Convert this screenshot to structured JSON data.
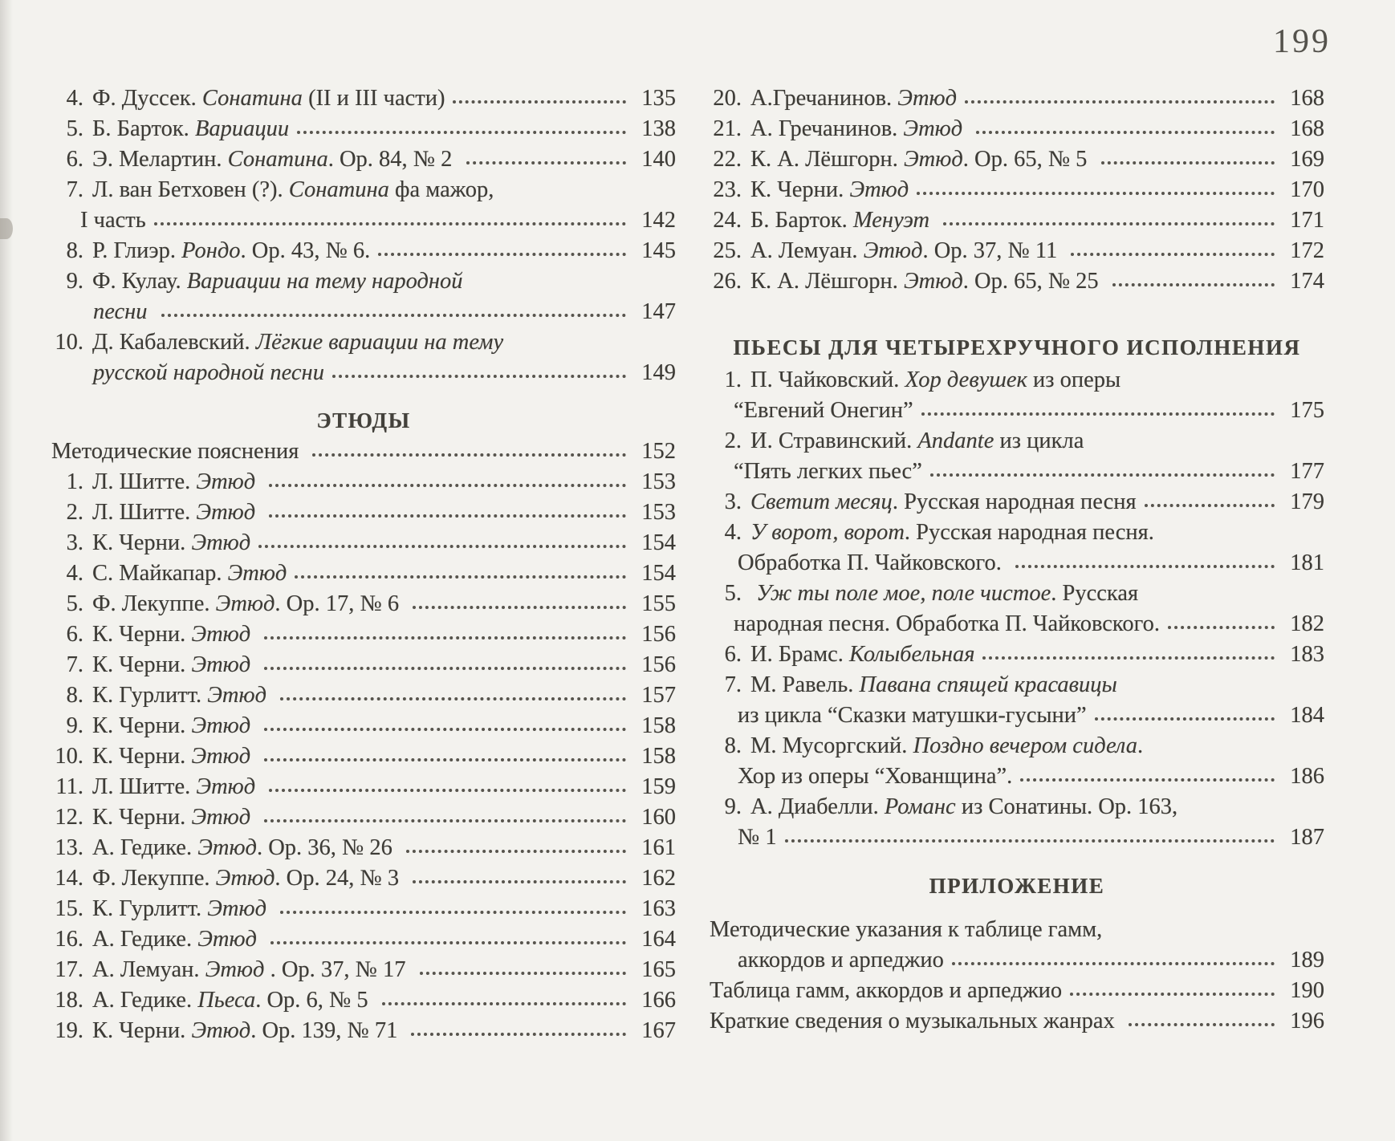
{
  "page_number": "199",
  "left_column": {
    "blocks": [
      {
        "type": "entries",
        "lines": [
          {
            "n": "4.",
            "seg": [
              [
                "Ф. Дуссек. ",
                0
              ],
              [
                "Сонатина",
                1
              ],
              [
                " (II и III части)",
                0
              ]
            ],
            "p": "135"
          },
          {
            "n": "5.",
            "seg": [
              [
                "Б. Барток. ",
                0
              ],
              [
                "Вариации",
                1
              ]
            ],
            "p": "138"
          },
          {
            "n": "6.",
            "seg": [
              [
                "Э. Мелартин. ",
                0
              ],
              [
                "Сонатина",
                1
              ],
              [
                ". Ор. 84, № 2 ",
                0
              ]
            ],
            "p": "140"
          },
          {
            "n": "7.",
            "seg": [
              [
                "Л. ван Бетховен (?). ",
                0
              ],
              [
                "Сонатина",
                1
              ],
              [
                " фа мажор,",
                0
              ]
            ]
          },
          {
            "ind": 1,
            "seg": [
              [
                "I часть",
                0
              ]
            ],
            "p": "142"
          },
          {
            "n": "8.",
            "seg": [
              [
                "Р. Глиэр. ",
                0
              ],
              [
                "Рондо",
                1
              ],
              [
                ". Ор. 43, № 6.",
                0
              ]
            ],
            "p": "145"
          },
          {
            "n": "9.",
            "seg": [
              [
                "Ф. Кулау. ",
                0
              ],
              [
                "Вариации на тему народной",
                1
              ]
            ]
          },
          {
            "ind": 3,
            "seg": [
              [
                "песни",
                1
              ],
              [
                " ",
                0
              ]
            ],
            "p": "147"
          },
          {
            "n": "10.",
            "seg": [
              [
                "Д. Кабалевский. ",
                0
              ],
              [
                "Лёгкие вариации на тему",
                1
              ]
            ]
          },
          {
            "ind": 3,
            "seg": [
              [
                "русской народной песни",
                1
              ]
            ],
            "p": "149"
          }
        ]
      },
      {
        "type": "heading",
        "text": "ЭТЮДЫ"
      },
      {
        "type": "entries",
        "lines": [
          {
            "seg": [
              [
                "Методические пояснения ",
                0
              ]
            ],
            "p": "152"
          },
          {
            "n": "1.",
            "seg": [
              [
                "Л. Шитте. ",
                0
              ],
              [
                "Этюд",
                1
              ],
              [
                " ",
                0
              ]
            ],
            "p": "153"
          },
          {
            "n": "2.",
            "seg": [
              [
                "Л. Шитте. ",
                0
              ],
              [
                "Этюд",
                1
              ],
              [
                " ",
                0
              ]
            ],
            "p": "153"
          },
          {
            "n": "3.",
            "seg": [
              [
                "К. Черни. ",
                0
              ],
              [
                "Этюд",
                1
              ]
            ],
            "p": "154"
          },
          {
            "n": "4.",
            "seg": [
              [
                "С. Майкапар. ",
                0
              ],
              [
                "Этюд",
                1
              ]
            ],
            "p": "154"
          },
          {
            "n": "5.",
            "seg": [
              [
                "Ф. Лекуппе. ",
                0
              ],
              [
                "Этюд",
                1
              ],
              [
                ". Ор. 17, № 6 ",
                0
              ]
            ],
            "p": "155"
          },
          {
            "n": "6.",
            "seg": [
              [
                "К. Черни. ",
                0
              ],
              [
                "Этюд",
                1
              ],
              [
                " ",
                0
              ]
            ],
            "p": "156"
          },
          {
            "n": "7.",
            "seg": [
              [
                "К. Черни. ",
                0
              ],
              [
                "Этюд",
                1
              ],
              [
                " ",
                0
              ]
            ],
            "p": "156"
          },
          {
            "n": "8.",
            "seg": [
              [
                "К. Гурлитт. ",
                0
              ],
              [
                "Этюд",
                1
              ],
              [
                " ",
                0
              ]
            ],
            "p": "157"
          },
          {
            "n": "9.",
            "seg": [
              [
                "К. Черни. ",
                0
              ],
              [
                "Этюд",
                1
              ],
              [
                " ",
                0
              ]
            ],
            "p": "158"
          },
          {
            "n": "10.",
            "seg": [
              [
                "К. Черни. ",
                0
              ],
              [
                "Этюд",
                1
              ],
              [
                " ",
                0
              ]
            ],
            "p": "158"
          },
          {
            "n": "11.",
            "seg": [
              [
                "Л. Шитте. ",
                0
              ],
              [
                "Этюд",
                1
              ],
              [
                " ",
                0
              ]
            ],
            "p": "159"
          },
          {
            "n": "12.",
            "seg": [
              [
                "К. Черни. ",
                0
              ],
              [
                "Этюд",
                1
              ],
              [
                " ",
                0
              ]
            ],
            "p": "160"
          },
          {
            "n": "13.",
            "seg": [
              [
                "А. Гедике. ",
                0
              ],
              [
                "Этюд",
                1
              ],
              [
                ". Ор. 36, № 26 ",
                0
              ]
            ],
            "p": "161"
          },
          {
            "n": "14.",
            "seg": [
              [
                "Ф. Лекуппе. ",
                0
              ],
              [
                "Этюд",
                1
              ],
              [
                ". Ор. 24, № 3 ",
                0
              ]
            ],
            "p": "162"
          },
          {
            "n": "15.",
            "seg": [
              [
                "К. Гурлитт. ",
                0
              ],
              [
                "Этюд",
                1
              ],
              [
                " ",
                0
              ]
            ],
            "p": "163"
          },
          {
            "n": "16.",
            "seg": [
              [
                "А. Гедике. ",
                0
              ],
              [
                "Этюд",
                1
              ],
              [
                " ",
                0
              ]
            ],
            "p": "164"
          },
          {
            "n": "17.",
            "seg": [
              [
                "А. Лемуан. ",
                0
              ],
              [
                "Этюд",
                1
              ],
              [
                " . Ор. 37, № 17 ",
                0
              ]
            ],
            "p": "165"
          },
          {
            "n": "18.",
            "seg": [
              [
                "А. Гедике. ",
                0
              ],
              [
                "Пьеса",
                1
              ],
              [
                ". Ор. 6, № 5 ",
                0
              ]
            ],
            "p": "166"
          },
          {
            "n": "19.",
            "seg": [
              [
                "К. Черни. ",
                0
              ],
              [
                "Этюд",
                1
              ],
              [
                ". Ор. 139, № 71 ",
                0
              ]
            ],
            "p": "167"
          }
        ]
      }
    ]
  },
  "right_column": {
    "blocks": [
      {
        "type": "entries",
        "lines": [
          {
            "n": "20.",
            "seg": [
              [
                "А.Гречанинов. ",
                0
              ],
              [
                "Этюд",
                1
              ]
            ],
            "p": "168"
          },
          {
            "n": "21.",
            "seg": [
              [
                "А. Гречанинов. ",
                0
              ],
              [
                "Этюд",
                1
              ],
              [
                " ",
                0
              ]
            ],
            "p": "168"
          },
          {
            "n": "22.",
            "seg": [
              [
                "К. А. Лёшгорн. ",
                0
              ],
              [
                "Этюд",
                1
              ],
              [
                ". Ор. 65, № 5 ",
                0
              ]
            ],
            "p": "169"
          },
          {
            "n": "23.",
            "seg": [
              [
                "К. Черни. ",
                0
              ],
              [
                "Этюд",
                1
              ]
            ],
            "p": "170"
          },
          {
            "n": "24.",
            "seg": [
              [
                "Б. Барток. ",
                0
              ],
              [
                "Менуэт",
                1
              ],
              [
                " ",
                0
              ]
            ],
            "p": "171"
          },
          {
            "n": "25.",
            "seg": [
              [
                "А. Лемуан. ",
                0
              ],
              [
                "Этюд",
                1
              ],
              [
                ". Ор. 37, № 11 ",
                0
              ]
            ],
            "p": "172"
          },
          {
            "n": "26.",
            "seg": [
              [
                "К. А. Лёшгорн. ",
                0
              ],
              [
                "Этюд",
                1
              ],
              [
                ". Ор. 65, № 25 ",
                0
              ]
            ],
            "p": "174"
          }
        ]
      },
      {
        "type": "heading",
        "text": "ПЬЕСЫ ДЛЯ ЧЕТЫРЕХРУЧНОГО ИСПОЛНЕНИЯ"
      },
      {
        "type": "entries",
        "lines": [
          {
            "n": "1.",
            "seg": [
              [
                "П. Чайковский. ",
                0
              ],
              [
                "Хор девушек",
                1
              ],
              [
                " из оперы",
                0
              ]
            ]
          },
          {
            "ind": 2,
            "seg": [
              [
                "“Евгений Онегин”",
                0
              ]
            ],
            "p": "175"
          },
          {
            "n": "2.",
            "seg": [
              [
                "И. Стравинский. ",
                0
              ],
              [
                "Andante",
                1
              ],
              [
                " из цикла",
                0
              ]
            ]
          },
          {
            "ind": 2,
            "seg": [
              [
                "“Пять легких пьес”",
                0
              ]
            ],
            "p": "177"
          },
          {
            "n": "3.",
            "seg": [
              [
                "Светит месяц",
                1
              ],
              [
                ". Русская народная песня",
                0
              ]
            ],
            "p": "179"
          },
          {
            "n": "4.",
            "seg": [
              [
                "У ворот, ворот",
                1
              ],
              [
                ". Русская народная песня.",
                0
              ]
            ]
          },
          {
            "ind": 3,
            "seg": [
              [
                "Обработка П. Чайковского. ",
                0
              ]
            ],
            "p": "181"
          },
          {
            "n": "5.",
            "seg": [
              [
                " ",
                0
              ],
              [
                "Уж ты поле мое, поле чистое",
                1
              ],
              [
                ". Русская",
                0
              ]
            ]
          },
          {
            "ind": 2,
            "seg": [
              [
                "народная песня. Обработка П. Чайковского.",
                0
              ]
            ],
            "p": "182"
          },
          {
            "n": "6.",
            "seg": [
              [
                "И. Брамс. ",
                0
              ],
              [
                "Колыбельная",
                1
              ]
            ],
            "p": "183"
          },
          {
            "n": "7.",
            "seg": [
              [
                "М. Равель. ",
                0
              ],
              [
                "Павана спящей красавицы",
                1
              ]
            ]
          },
          {
            "ind": 3,
            "seg": [
              [
                "из цикла “Сказки матушки-гусыни”",
                0
              ]
            ],
            "p": "184"
          },
          {
            "n": "8.",
            "seg": [
              [
                "М. Мусоргский. ",
                0
              ],
              [
                "Поздно вечером сидела",
                1
              ],
              [
                ".",
                0
              ]
            ]
          },
          {
            "ind": 3,
            "seg": [
              [
                "Хор из оперы “Хованщина”.",
                0
              ]
            ],
            "p": "186"
          },
          {
            "n": "9.",
            "seg": [
              [
                "А. Диабелли. ",
                0
              ],
              [
                "Романс",
                1
              ],
              [
                " из Сонатины. Ор. 163,",
                0
              ]
            ]
          },
          {
            "ind": 3,
            "seg": [
              [
                "№ 1",
                0
              ]
            ],
            "p": "187"
          }
        ]
      },
      {
        "type": "heading",
        "text": "ПРИЛОЖЕНИЕ"
      },
      {
        "type": "entries",
        "lines": [
          {
            "seg": [
              [
                "Методические указания к таблице гамм,",
                0
              ]
            ]
          },
          {
            "ind": 3,
            "seg": [
              [
                "аккордов и арпеджио",
                0
              ]
            ],
            "p": "189"
          },
          {
            "seg": [
              [
                "Таблица гамм, аккордов и арпеджио",
                0
              ]
            ],
            "p": "190"
          },
          {
            "seg": [
              [
                "Краткие сведения о музыкальных жанрах ",
                0
              ]
            ],
            "p": "196"
          }
        ]
      }
    ]
  }
}
